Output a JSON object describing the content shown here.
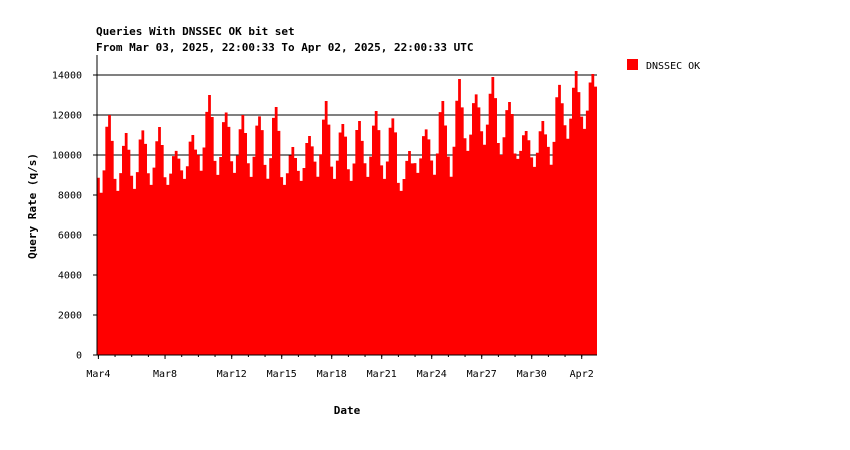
{
  "chart_data": {
    "type": "area",
    "title": "Queries With DNSSEC OK bit set",
    "subtitle": "From Mar 03, 2025, 22:00:33 To Apr 02, 2025, 22:00:33 UTC",
    "xlabel": "Date",
    "ylabel": "Query Rate (q/s)",
    "ylim": [
      0,
      15000
    ],
    "yticks": [
      0,
      2000,
      4000,
      6000,
      8000,
      10000,
      12000,
      14000
    ],
    "grid": "y-major",
    "legend_position": "top-right",
    "color": "#ff0000",
    "x_start": "Mar 03, 2025, 22:00:33",
    "x_end": "Apr 02, 2025, 22:00:33",
    "xtick_labels": [
      {
        "label": "Mar4",
        "day": 0.083
      },
      {
        "label": "Mar8",
        "day": 4.083
      },
      {
        "label": "Mar12",
        "day": 8.083
      },
      {
        "label": "Mar15",
        "day": 11.083
      },
      {
        "label": "Mar18",
        "day": 14.083
      },
      {
        "label": "Mar21",
        "day": 17.083
      },
      {
        "label": "Mar24",
        "day": 20.083
      },
      {
        "label": "Mar27",
        "day": 23.083
      },
      {
        "label": "Mar30",
        "day": 26.083
      },
      {
        "label": "Apr2",
        "day": 29.083
      }
    ],
    "series": [
      {
        "name": "DNSSEC OK",
        "daily_min": [
          8100,
          8200,
          8300,
          8500,
          8500,
          8800,
          9200,
          9000,
          9100,
          8900,
          8800,
          8500,
          8700,
          8900,
          8800,
          8700,
          8900,
          8800,
          8200,
          9100,
          9000,
          8900,
          10200,
          10500,
          10000,
          9800,
          9400,
          9500,
          10800,
          11300
        ],
        "daily_peak": [
          12000,
          11100,
          11300,
          11400,
          10300,
          11000,
          13000,
          12200,
          12000,
          12100,
          12400,
          10400,
          11000,
          12700,
          11700,
          11700,
          12200,
          11900,
          10200,
          11400,
          12700,
          13800,
          13100,
          13900,
          12800,
          11200,
          11700,
          13600,
          14200,
          14200
        ]
      }
    ]
  }
}
